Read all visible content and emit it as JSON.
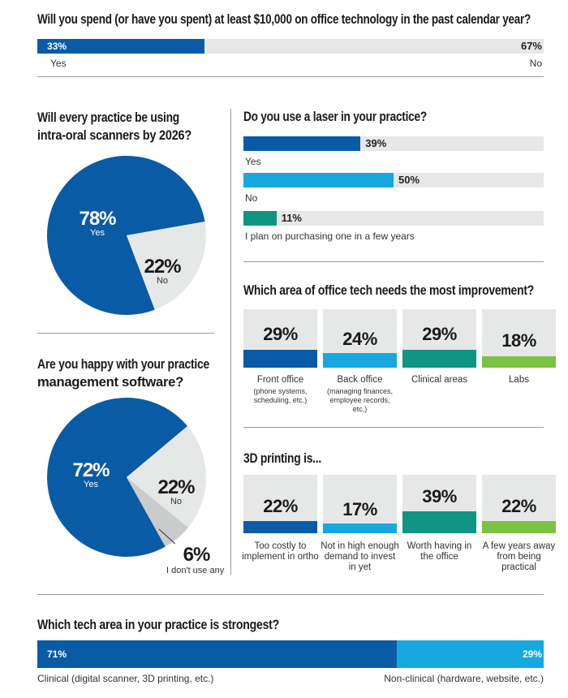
{
  "colors": {
    "blue": "#0a5ba6",
    "cyan": "#16a8de",
    "teal": "#109484",
    "green": "#7cc242",
    "track": "#e6e8e7"
  },
  "chart_data": [
    {
      "type": "bar",
      "title": "Will you spend (or have you spent) at least $10,000 on office technology in the past calendar year?",
      "categories": [
        "Yes",
        "No"
      ],
      "values": [
        33,
        67
      ],
      "value_labels": [
        "33%",
        "67%"
      ],
      "unit": "%"
    },
    {
      "type": "pie",
      "title": "Will every practice be using intra-oral scanners by 2026?",
      "categories": [
        "Yes",
        "No"
      ],
      "values": [
        78,
        22
      ],
      "value_labels": [
        "78%",
        "22%"
      ],
      "colors": [
        "#0a5ba6",
        "#e6e8e7"
      ]
    },
    {
      "type": "bar",
      "title": "Do you use a laser in your practice?",
      "categories": [
        "Yes",
        "No",
        "I plan on purchasing one in a few years"
      ],
      "values": [
        39,
        50,
        11
      ],
      "value_labels": [
        "39%",
        "50%",
        "11%"
      ],
      "colors": [
        "#0a5ba6",
        "#16a8de",
        "#109484"
      ],
      "xlim": [
        0,
        100
      ]
    },
    {
      "type": "bar",
      "title": "Which area of office tech needs the most improvement?",
      "categories": [
        "Front office",
        "Back office",
        "Clinical areas",
        "Labs"
      ],
      "sublabels": [
        "(phone systems, scheduling, etc.)",
        "(managing finances, employee records, etc.)",
        "",
        ""
      ],
      "values": [
        29,
        24,
        29,
        18
      ],
      "value_labels": [
        "29%",
        "24%",
        "29%",
        "18%"
      ],
      "colors": [
        "#0a5ba6",
        "#16a8de",
        "#109484",
        "#7cc242"
      ]
    },
    {
      "type": "pie",
      "title": "Are you happy with your practice management software?",
      "categories": [
        "Yes",
        "No",
        "I don't use any"
      ],
      "values": [
        72,
        22,
        6
      ],
      "value_labels": [
        "72%",
        "22%",
        "6%"
      ],
      "colors": [
        "#0a5ba6",
        "#e6e8e7",
        "#c9cccb"
      ]
    },
    {
      "type": "bar",
      "title": "3D printing is...",
      "categories": [
        "Too costly to implement in ortho",
        "Not in high enough demand to invest in yet",
        "Worth having in the office",
        "A few years away from being practical"
      ],
      "values": [
        22,
        17,
        39,
        22
      ],
      "value_labels": [
        "22%",
        "17%",
        "39%",
        "22%"
      ],
      "colors": [
        "#0a5ba6",
        "#16a8de",
        "#109484",
        "#7cc242"
      ],
      "ylim": [
        0,
        100
      ]
    },
    {
      "type": "bar",
      "title": "Which tech area in your practice is strongest?",
      "categories": [
        "Clinical (digital scanner, 3D printing, etc.)",
        "Non-clinical (hardware, website, etc.)"
      ],
      "values": [
        71,
        29
      ],
      "value_labels": [
        "71%",
        "29%"
      ],
      "colors": [
        "#0a5ba6",
        "#16a8de"
      ]
    }
  ]
}
